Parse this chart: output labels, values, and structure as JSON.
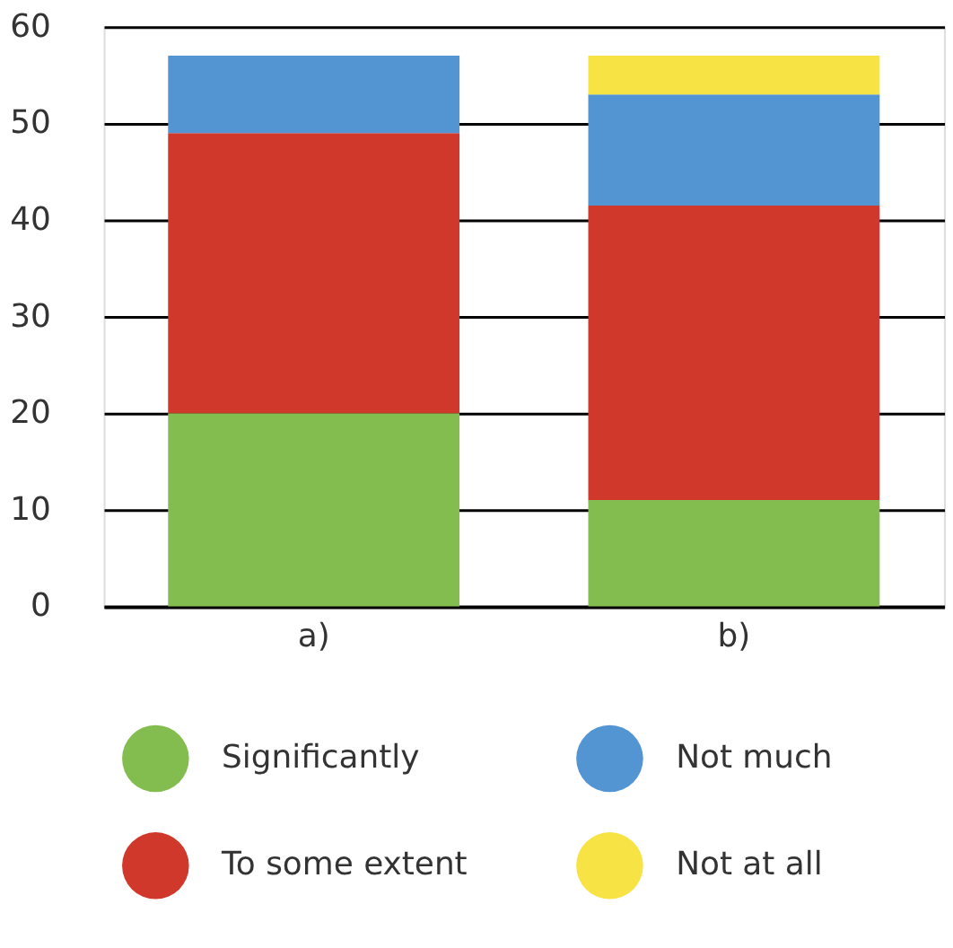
{
  "chart_data": {
    "type": "bar",
    "stacked": true,
    "categories": [
      "a)",
      "b)"
    ],
    "series": [
      {
        "name": "Significantly",
        "color": "#84bd4f",
        "values": [
          20,
          11
        ]
      },
      {
        "name": "To some extent",
        "color": "#d0382b",
        "values": [
          29,
          30.5
        ]
      },
      {
        "name": "Not much",
        "color": "#5395d3",
        "values": [
          8,
          11.5
        ]
      },
      {
        "name": "Not at all",
        "color": "#f8e344",
        "values": [
          0,
          4
        ]
      }
    ],
    "ylim": [
      0,
      60
    ],
    "yticks": [
      0,
      10,
      20,
      30,
      40,
      50,
      60
    ],
    "grid": "y",
    "legend": "bottom"
  }
}
